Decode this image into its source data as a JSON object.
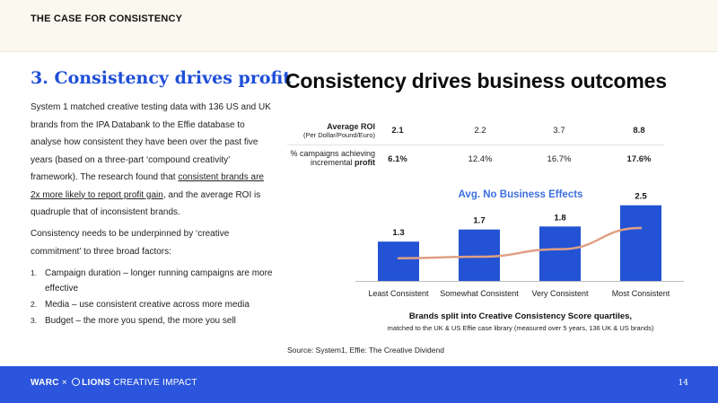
{
  "header": {
    "section_label": "THE CASE FOR CONSISTENCY"
  },
  "left": {
    "title": "3. Consistency drives profit",
    "para1_a": "System 1 matched creative testing data with 136 US and UK brands from the IPA Databank to the Effie database to analyse how consistent they have been over the past five years (based on a three-part ‘compound creativity’ framework). The research found that ",
    "para1_link": "consistent brands are 2x more likely to report profit gain",
    "para1_b": ", and the average ROI is quadruple that of inconsistent brands.",
    "para2": "Consistency needs to be underpinned by ‘creative commitment’ to three broad factors:",
    "list": [
      {
        "num": "1.",
        "text": "Campaign duration – longer running campaigns are more effective"
      },
      {
        "num": "2.",
        "text": "Media – use consistent creative across more media"
      },
      {
        "num": "3.",
        "text": "Budget – the more you spend, the more you sell"
      }
    ]
  },
  "main": {
    "title": "Consistency drives business outcomes"
  },
  "table": {
    "row1": {
      "label": "Average ROI",
      "sublabel": "(Per Dollar/Pound/Euro)",
      "values": [
        "2.1",
        "2.2",
        "3.7",
        "8.8"
      ]
    },
    "row2": {
      "label_a": "% campaigns achieving",
      "label_b": "incremental ",
      "label_bold": "profit",
      "values": [
        "6.1%",
        "12.4%",
        "16.7%",
        "17.6%"
      ]
    }
  },
  "chart_data": {
    "type": "bar",
    "title": "Avg. No Business Effects",
    "categories": [
      "Least Consistent",
      "Somewhat Consistent",
      "Very Consistent",
      "Most Consistent"
    ],
    "values": [
      1.3,
      1.7,
      1.8,
      2.5
    ],
    "value_labels": [
      "1.3",
      "1.7",
      "1.8",
      "2.5"
    ],
    "ylim": [
      0,
      2.7
    ],
    "bar_color": "#2353d4",
    "trend_color": "#e0a083",
    "trend": [
      0.75,
      0.8,
      1.05,
      1.75
    ],
    "grid": false,
    "xlabel": "Brands split into Creative Consistency Score quartiles,",
    "xlabel_sub": "matched to the UK & US Effie case library (measured over 5 years, 136 UK & US brands)"
  },
  "source": "Source: System1, Effie: The Creative Dividend",
  "footer": {
    "brand_a": "WARC",
    "sep": "×",
    "brand_b": "LIONS",
    "brand_c": "CREATIVE IMPACT",
    "page": "14",
    "bg": "#2b55dc"
  }
}
